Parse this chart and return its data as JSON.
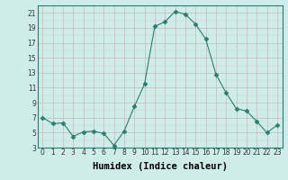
{
  "x": [
    0,
    1,
    2,
    3,
    4,
    5,
    6,
    7,
    8,
    9,
    10,
    11,
    12,
    13,
    14,
    15,
    16,
    17,
    18,
    19,
    20,
    21,
    22,
    23
  ],
  "y": [
    7,
    6.2,
    6.3,
    4.5,
    5.1,
    5.2,
    4.9,
    3.3,
    5.2,
    8.5,
    11.5,
    19.2,
    19.8,
    21.2,
    20.8,
    19.5,
    17.5,
    12.8,
    10.3,
    8.2,
    7.9,
    6.5,
    5.0,
    6.0
  ],
  "line_color": "#2d7d6e",
  "marker": "D",
  "marker_size": 2.5,
  "bg_color": "#cdecea",
  "grid_major_color": "#c8b8b8",
  "grid_minor_color": "#ddd0d0",
  "xlabel": "Humidex (Indice chaleur)",
  "xlabel_fontsize": 7.5,
  "ylim": [
    3,
    22
  ],
  "xlim": [
    -0.5,
    23.5
  ],
  "yticks": [
    3,
    5,
    7,
    9,
    11,
    13,
    15,
    17,
    19,
    21
  ],
  "xticks": [
    0,
    1,
    2,
    3,
    4,
    5,
    6,
    7,
    8,
    9,
    10,
    11,
    12,
    13,
    14,
    15,
    16,
    17,
    18,
    19,
    20,
    21,
    22,
    23
  ],
  "tick_fontsize": 5.5,
  "spine_color": "#2d7d6e"
}
